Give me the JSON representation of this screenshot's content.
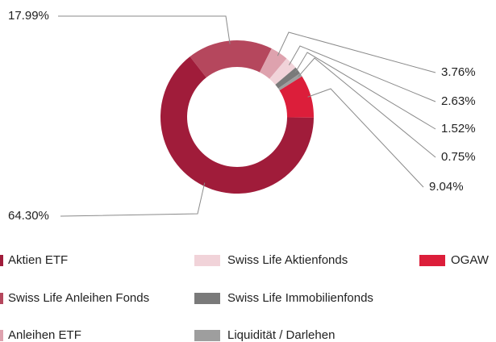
{
  "chart_data": {
    "type": "donut",
    "categories": [
      "Swiss Life Anleihen Fonds",
      "Anleihen ETF",
      "Swiss Life Aktienfonds",
      "Swiss Life Immobilienfonds",
      "Liquidität / Darlehen",
      "OGAW",
      "Aktien ETF"
    ],
    "values": [
      17.99,
      3.76,
      2.63,
      1.52,
      0.75,
      9.04,
      64.3
    ],
    "value_labels": [
      "17.99%",
      "3.76%",
      "2.63%",
      "1.52%",
      "0.75%",
      "9.04%",
      "64.30%"
    ],
    "colors": [
      "#b5475d",
      "#dea2ae",
      "#f1d3d9",
      "#7a7a7a",
      "#9e9e9e",
      "#dc1e3a",
      "#a01c3a"
    ]
  }
}
